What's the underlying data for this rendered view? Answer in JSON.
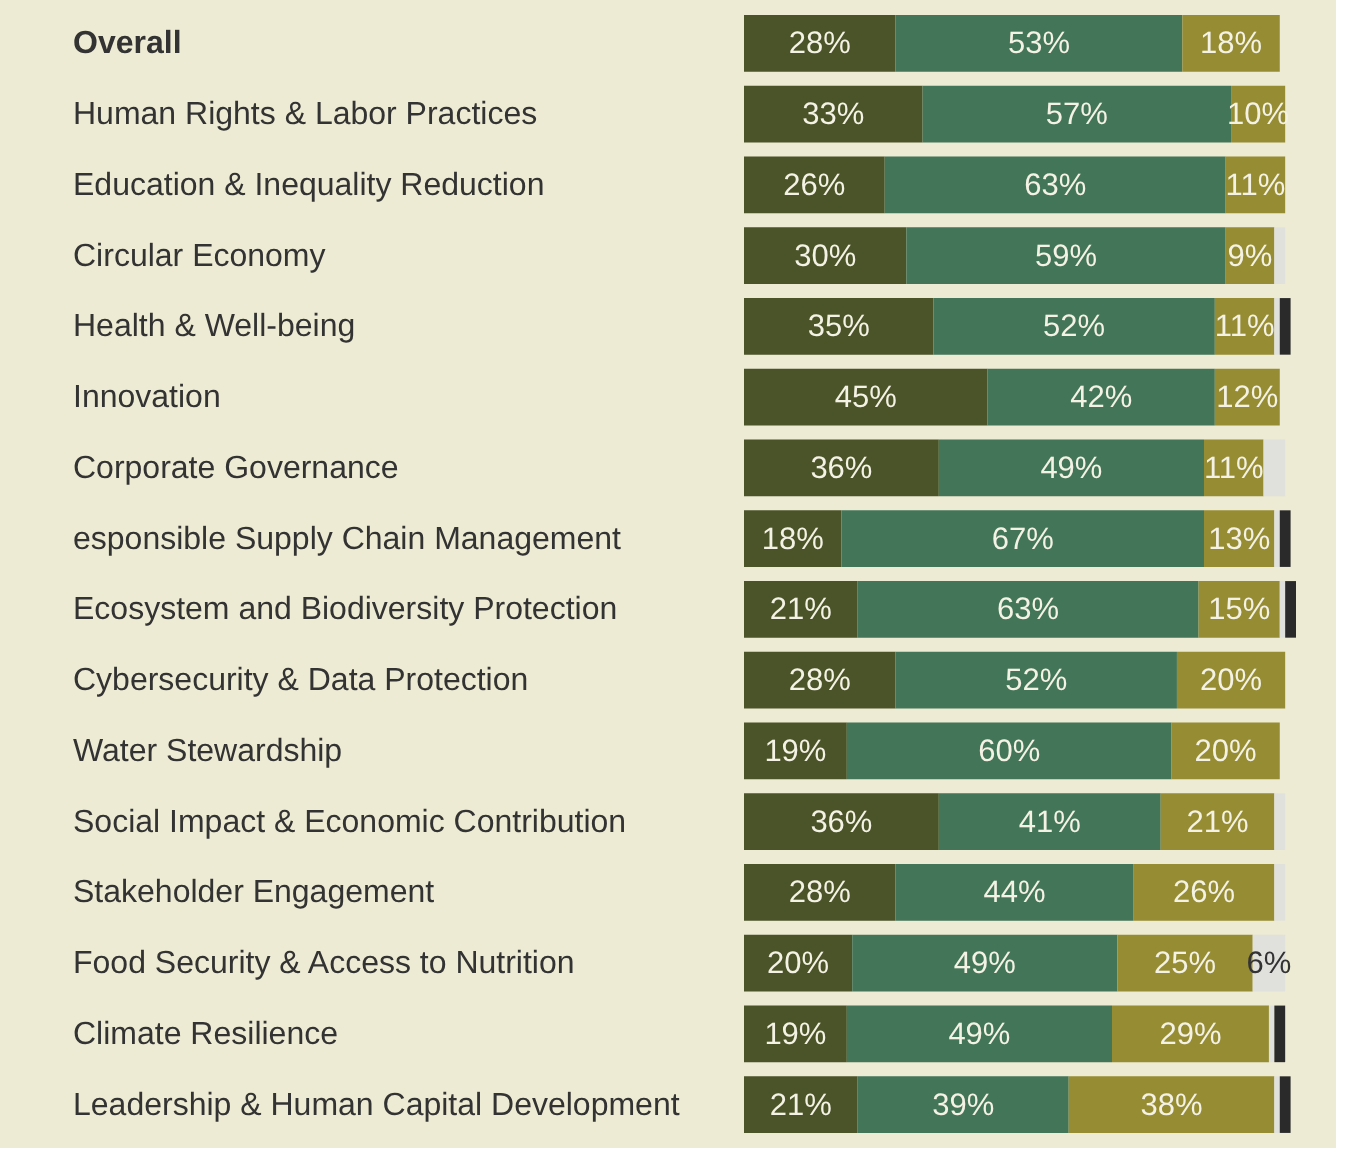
{
  "chart_data": {
    "type": "bar",
    "orientation": "horizontal",
    "stacked": true,
    "grid": false,
    "tick_labels": "y",
    "categories": [
      "Overall",
      "Human Rights & Labor Practices",
      "Education & Inequality Reduction",
      "Circular Economy",
      "Health & Well-being",
      "Innovation",
      "Corporate Governance",
      "esponsible Supply Chain Management",
      "Ecosystem and Biodiversity Protection",
      "Cybersecurity & Data Protection",
      "Water Stewardship",
      "Social Impact & Economic Contribution",
      "Stakeholder Engagement",
      "Food Security & Access to Nutrition",
      "Climate Resilience",
      "Leadership & Human Capital Development"
    ],
    "series": [
      {
        "color": "#4a5428",
        "values": [
          28,
          33,
          26,
          30,
          35,
          45,
          36,
          18,
          21,
          28,
          19,
          36,
          28,
          20,
          19,
          21
        ],
        "value_labels": [
          "28%",
          "33%",
          "26%",
          "30%",
          "35%",
          "45%",
          "36%",
          "18%",
          "21%",
          "28%",
          "19%",
          "36%",
          "28%",
          "20%",
          "19%",
          "21%"
        ]
      },
      {
        "color": "#437558",
        "values": [
          53,
          57,
          63,
          59,
          52,
          42,
          49,
          67,
          63,
          52,
          60,
          41,
          44,
          49,
          49,
          39
        ],
        "value_labels": [
          "53%",
          "57%",
          "63%",
          "59%",
          "52%",
          "42%",
          "49%",
          "67%",
          "63%",
          "52%",
          "60%",
          "41%",
          "44%",
          "49%",
          "49%",
          "39%"
        ]
      },
      {
        "color": "#968c33",
        "values": [
          18,
          10,
          11,
          9,
          11,
          12,
          11,
          13,
          15,
          20,
          20,
          21,
          26,
          25,
          29,
          38
        ],
        "value_labels": [
          "18%",
          "10%",
          "11%",
          "9%",
          "11%",
          "12%",
          "11%",
          "13%",
          "15%",
          "20%",
          "20%",
          "21%",
          "26%",
          "25%",
          "29%",
          "38%"
        ]
      },
      {
        "color": "#e0e0dc",
        "values": [
          null,
          null,
          null,
          2,
          1,
          null,
          4,
          1,
          1,
          null,
          null,
          2,
          2,
          6,
          1,
          1
        ],
        "value_labels": [
          null,
          null,
          null,
          null,
          null,
          null,
          null,
          null,
          null,
          null,
          null,
          null,
          null,
          "6%",
          null,
          null
        ]
      },
      {
        "color": "#2a2a2a",
        "values": [
          null,
          null,
          null,
          null,
          2,
          null,
          null,
          2,
          2,
          null,
          null,
          null,
          null,
          null,
          2,
          2
        ],
        "value_labels": [
          null,
          null,
          null,
          null,
          null,
          null,
          null,
          null,
          null,
          null,
          null,
          null,
          null,
          null,
          null,
          null
        ]
      }
    ]
  }
}
